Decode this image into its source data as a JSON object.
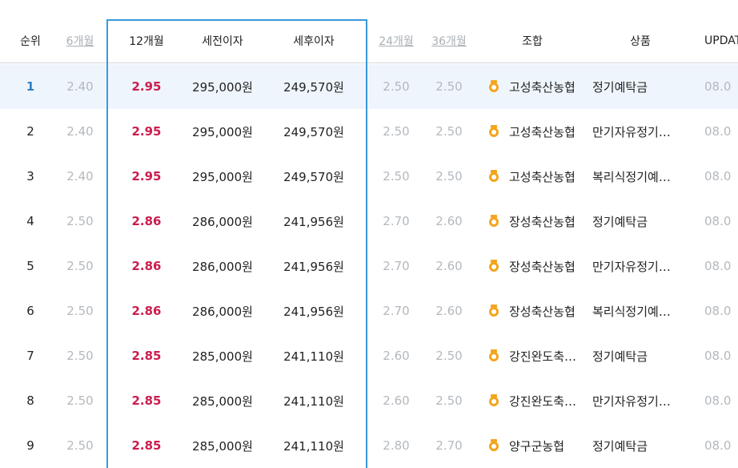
{
  "header": {
    "rank": "순위",
    "m6": "6개월",
    "m12": "12개월",
    "pre_tax": "세전이자",
    "post_tax": "세후이자",
    "m24": "24개월",
    "m36": "36개월",
    "union": "조합",
    "product": "상품",
    "update": "UPDATE"
  },
  "rows": [
    {
      "rank": "1",
      "m6": "2.40",
      "m12": "2.95",
      "pre": "295,000원",
      "post": "249,570원",
      "m24": "2.50",
      "m36": "2.50",
      "union": "고성축산농협",
      "product": "정기예탁금",
      "update": "08.0"
    },
    {
      "rank": "2",
      "m6": "2.40",
      "m12": "2.95",
      "pre": "295,000원",
      "post": "249,570원",
      "m24": "2.50",
      "m36": "2.50",
      "union": "고성축산농협",
      "product": "만기자유정기예탁금",
      "update": "08.0"
    },
    {
      "rank": "3",
      "m6": "2.40",
      "m12": "2.95",
      "pre": "295,000원",
      "post": "249,570원",
      "m24": "2.50",
      "m36": "2.50",
      "union": "고성축산농협",
      "product": "복리식정기예탁금",
      "update": "08.0"
    },
    {
      "rank": "4",
      "m6": "2.50",
      "m12": "2.86",
      "pre": "286,000원",
      "post": "241,956원",
      "m24": "2.70",
      "m36": "2.60",
      "union": "장성축산농협",
      "product": "정기예탁금",
      "update": "08.0"
    },
    {
      "rank": "5",
      "m6": "2.50",
      "m12": "2.86",
      "pre": "286,000원",
      "post": "241,956원",
      "m24": "2.70",
      "m36": "2.60",
      "union": "장성축산농협",
      "product": "만기자유정기예탁금",
      "update": "08.0"
    },
    {
      "rank": "6",
      "m6": "2.50",
      "m12": "2.86",
      "pre": "286,000원",
      "post": "241,956원",
      "m24": "2.70",
      "m36": "2.60",
      "union": "장성축산농협",
      "product": "복리식정기예탁금",
      "update": "08.0"
    },
    {
      "rank": "7",
      "m6": "2.50",
      "m12": "2.85",
      "pre": "285,000원",
      "post": "241,110원",
      "m24": "2.60",
      "m36": "2.50",
      "union": "강진완도축산농협",
      "product": "정기예탁금",
      "update": "08.0"
    },
    {
      "rank": "8",
      "m6": "2.50",
      "m12": "2.85",
      "pre": "285,000원",
      "post": "241,110원",
      "m24": "2.60",
      "m36": "2.50",
      "union": "강진완도축산농협",
      "product": "만기자유정기예탁금",
      "update": "08.0"
    },
    {
      "rank": "9",
      "m6": "2.50",
      "m12": "2.85",
      "pre": "285,000원",
      "post": "241,110원",
      "m24": "2.80",
      "m36": "2.70",
      "union": "양구군농협",
      "product": "정기예탁금",
      "update": "08.0"
    }
  ],
  "icons": {
    "union_badge": "medal-icon"
  },
  "colors": {
    "accent_rate": "#cc1d4e",
    "highlight_box": "#3a99db",
    "rank_first": "#2c7fc2",
    "dim_text": "#b4b9be",
    "medal": "#f4a51c"
  }
}
